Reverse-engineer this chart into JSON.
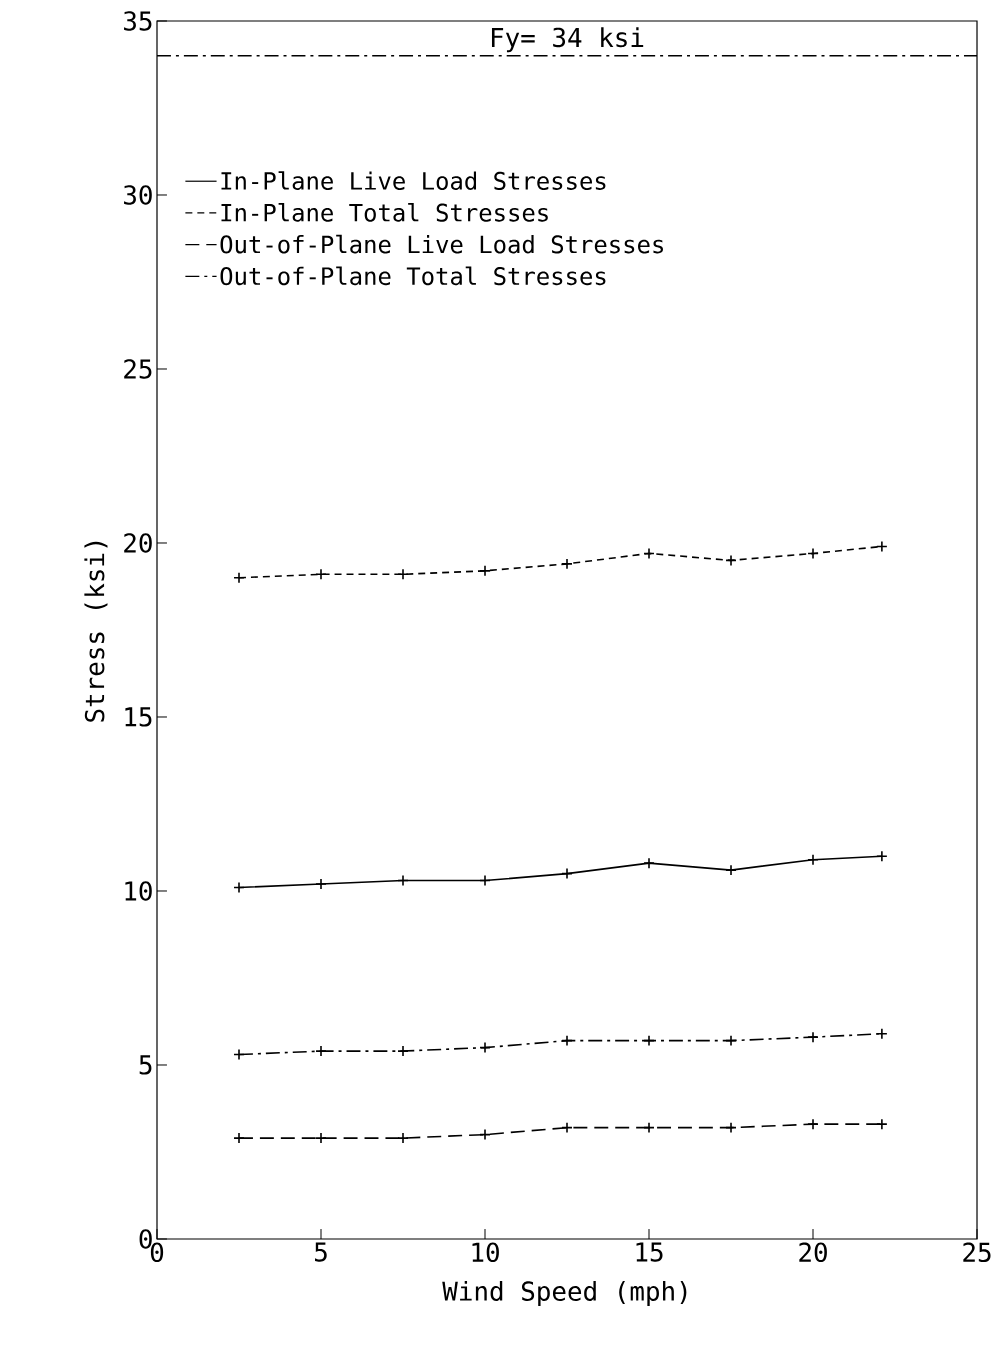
{
  "chart_data": {
    "type": "line",
    "xlabel": "Wind Speed (mph)",
    "ylabel": "Stress (ksi)",
    "x": [
      2.5,
      5,
      7.5,
      10,
      12.5,
      15,
      17.5,
      20,
      22.1
    ],
    "series": [
      {
        "name": "In-Plane Live Load Stresses",
        "color": "#000000",
        "line_style": "solid",
        "values": [
          10.1,
          10.2,
          10.3,
          10.3,
          10.5,
          10.8,
          10.6,
          10.9,
          11.0
        ]
      },
      {
        "name": "In-Plane Total Stresses",
        "color": "#000000",
        "line_style": "dotted",
        "values": [
          19.0,
          19.1,
          19.1,
          19.2,
          19.4,
          19.7,
          19.5,
          19.7,
          19.9
        ]
      },
      {
        "name": "Out-of-Plane Live Load Stresses",
        "color": "#000000",
        "line_style": "dashed",
        "values": [
          2.9,
          2.9,
          2.9,
          3.0,
          3.2,
          3.2,
          3.2,
          3.3,
          3.3
        ]
      },
      {
        "name": "Out-of-Plane Total Stresses",
        "color": "#000000",
        "line_style": "dashdot",
        "values": [
          5.3,
          5.4,
          5.4,
          5.5,
          5.7,
          5.7,
          5.7,
          5.8,
          5.9
        ]
      }
    ],
    "xlim": [
      0,
      25
    ],
    "ylim": [
      0,
      35
    ],
    "xticks": [
      0,
      5,
      10,
      15,
      20,
      25
    ],
    "yticks": [
      0,
      5,
      10,
      15,
      20,
      25,
      30,
      35
    ],
    "ref_lines": [
      {
        "axis": "y",
        "value": 34,
        "label": "Fy= 34 ksi",
        "line_style": "dashdot"
      }
    ],
    "legend": "top left",
    "marker": "cross",
    "grid": false
  }
}
